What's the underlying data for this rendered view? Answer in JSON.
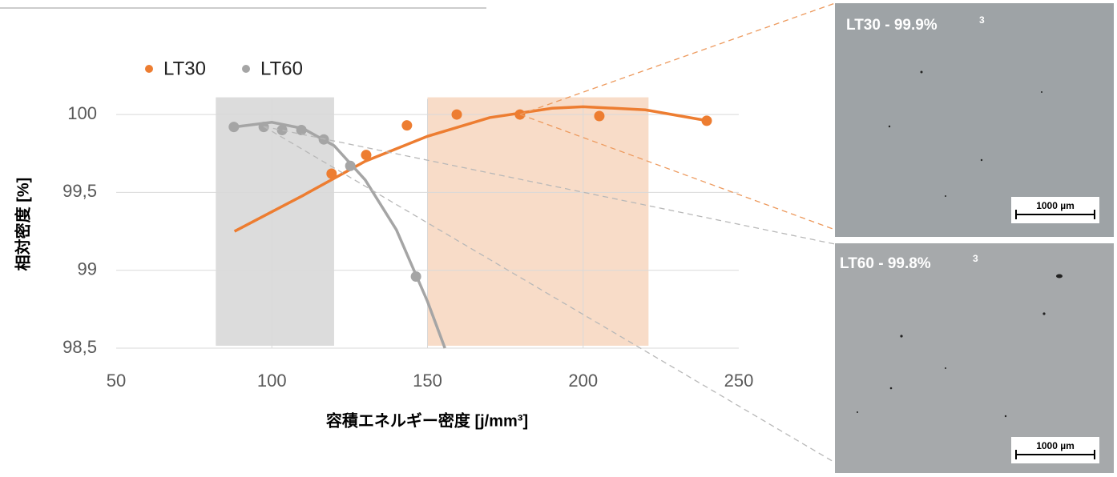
{
  "chart_data": {
    "type": "scatter",
    "x_label": "容積エネルギー密度 [j/mm³]",
    "y_label": "相対密度 [%]",
    "xlim": [
      50,
      250
    ],
    "xticks": [
      50,
      100,
      150,
      200,
      250
    ],
    "ylim": [
      98.5,
      100.1
    ],
    "yticks": [
      {
        "value": 98.5,
        "label": "98,5"
      },
      99,
      {
        "value": 99.5,
        "label": "99,5"
      },
      100
    ],
    "grid": true,
    "legend": "top-left",
    "highlight_ranges": [
      {
        "x": [
          82,
          120
        ],
        "color": "#dcdcdc"
      },
      {
        "x": [
          150,
          221
        ],
        "color": "#f8dcc8"
      }
    ],
    "series": [
      {
        "name": "LT30",
        "color": "#ed7d31",
        "x": [
          119.2,
          130.3,
          143.4,
          159.4,
          179.7,
          205.2,
          239.7
        ],
        "values": [
          99.62,
          99.74,
          99.93,
          100.0,
          100.0,
          99.99,
          99.96
        ],
        "trendline": {
          "x": [
            88,
            110,
            130,
            150,
            170,
            190,
            200,
            220,
            240
          ],
          "values": [
            99.25,
            99.48,
            99.7,
            99.86,
            99.98,
            100.04,
            100.05,
            100.03,
            99.96
          ]
        }
      },
      {
        "name": "LT60",
        "color": "#a5a5a5",
        "x": [
          87.8,
          97.4,
          103.3,
          109.5,
          116.7,
          125.2,
          146.3
        ],
        "values": [
          99.92,
          99.92,
          99.9,
          99.9,
          99.84,
          99.67,
          98.96
        ],
        "trendline": {
          "x": [
            88,
            100,
            110,
            120,
            130,
            140,
            150,
            155.6
          ],
          "values": [
            99.92,
            99.95,
            99.91,
            99.8,
            99.58,
            99.26,
            98.8,
            98.5
          ]
        }
      }
    ]
  },
  "micrographs": [
    {
      "label": "LT30 - 99.9%",
      "superscript": "3",
      "scale_bar": "1000 µm"
    },
    {
      "label": "LT60 - 99.8%",
      "superscript": "3",
      "scale_bar": "1000 µm"
    }
  ]
}
